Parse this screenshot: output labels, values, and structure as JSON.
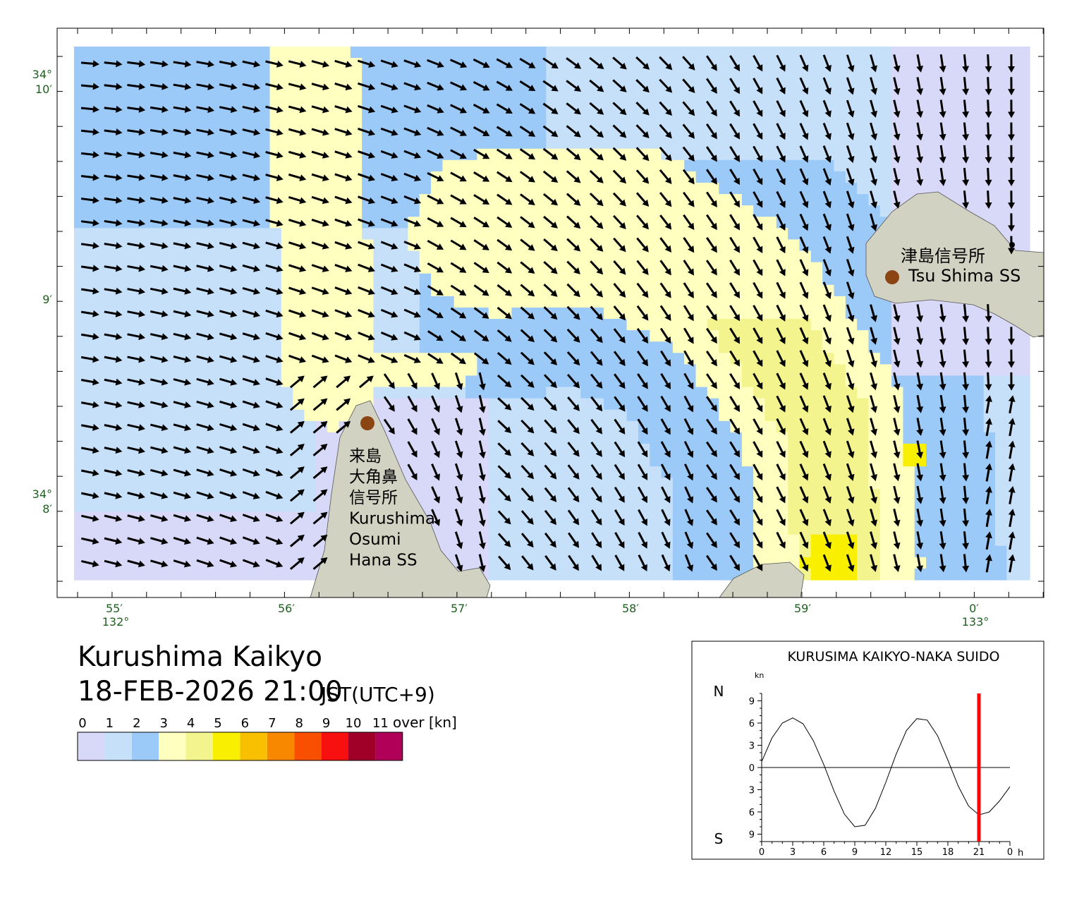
{
  "header": {
    "title": "Kurushima Kaikyo",
    "datetime": "18-FEB-2026 21:00",
    "timezone": "JST(UTC+9)"
  },
  "legend": {
    "bounds": [
      0,
      1,
      2,
      3,
      4,
      5,
      6,
      7,
      8,
      9,
      10,
      11
    ],
    "unit": "over [kn]",
    "colors": [
      "#d8d8f8",
      "#c6e0fa",
      "#9ccaf8",
      "#ffffc0",
      "#f4f48e",
      "#f8f000",
      "#f8c000",
      "#f88800",
      "#f85000",
      "#f81010",
      "#a00028",
      "#b00058"
    ]
  },
  "map": {
    "lat_ticks": [
      {
        "deg": "34°",
        "min": "10′"
      },
      {
        "min": "9′"
      },
      {
        "deg": "34°",
        "min": "8′"
      }
    ],
    "lon_ticks": [
      {
        "min": "55′",
        "deg": "132°"
      },
      {
        "min": "56′"
      },
      {
        "min": "57′"
      },
      {
        "min": "58′"
      },
      {
        "min": "59′"
      },
      {
        "min": "0′",
        "deg": "133°"
      }
    ],
    "stations": [
      {
        "lines": [
          "津島信号所",
          "Tsu Shima SS"
        ]
      },
      {
        "lines": [
          "来島",
          "大角鼻",
          "信号所",
          "Kurushima",
          "Osumi",
          "Hana SS"
        ]
      }
    ]
  },
  "chart_data": {
    "type": "line",
    "title": "KURUSIMA KAIKYO-NAKA SUIDO",
    "y_unit": "kn",
    "north_label": "N",
    "south_label": "S",
    "x_unit": "h",
    "x": [
      0,
      1,
      2,
      3,
      4,
      5,
      6,
      7,
      8,
      9,
      10,
      11,
      12,
      13,
      14,
      15,
      16,
      17,
      18,
      19,
      20,
      21,
      22,
      23,
      24
    ],
    "values": [
      0.8,
      4.0,
      6.0,
      6.7,
      5.9,
      3.6,
      0.4,
      -3.2,
      -6.3,
      -8.0,
      -7.8,
      -5.5,
      -2.0,
      1.8,
      5.0,
      6.6,
      6.4,
      4.3,
      1.0,
      -2.5,
      -5.2,
      -6.4,
      -6.0,
      -4.5,
      -2.6
    ],
    "color": "#000000",
    "xlim": [
      0,
      24
    ],
    "ylim": [
      -10,
      10
    ],
    "xticks": [
      0,
      3,
      6,
      9,
      12,
      15,
      18,
      21,
      {
        "value": 24,
        "label": "0"
      }
    ],
    "yticks": [
      9,
      6,
      3,
      0,
      {
        "value": -3,
        "label": "3"
      },
      {
        "value": -6,
        "label": "6"
      },
      {
        "value": -9,
        "label": "9"
      }
    ],
    "current_time": 21,
    "current_time_color": "#ff0000"
  }
}
